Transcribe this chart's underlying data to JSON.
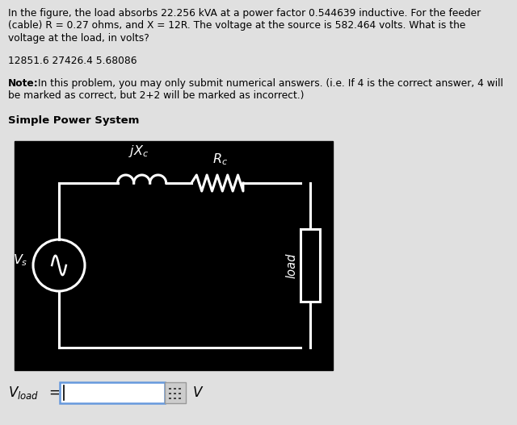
{
  "bg_color": "#e0e0e0",
  "circuit_bg": "#000000",
  "circuit_line_color": "#ffffff",
  "text_color": "#000000",
  "title_text": "Simple Power System",
  "problem_text_line1": "In the figure, the load absorbs 22.256 kVA at a power factor 0.544639 inductive. For the feeder",
  "problem_text_line2": "(cable) R = 0.27 ohms, and X = 12R. The voltage at the source is 582.464 volts. What is the",
  "problem_text_line3": "voltage at the load, in volts?",
  "answer_line": "12851.6 27426.4 5.68086",
  "note_bold": "Note:",
  "note_text": " In this problem, you may only submit numerical answers. (i.e. If 4 is the correct answer, 4 will",
  "note_text2": "be marked as correct, but 2+2 will be marked as incorrect.)",
  "vload_label": "$V_{load}$",
  "V_unit": "$V$",
  "font_size_body": 8.8,
  "font_size_title": 9.5,
  "font_size_circuit": 11.5,
  "font_size_vload": 12
}
